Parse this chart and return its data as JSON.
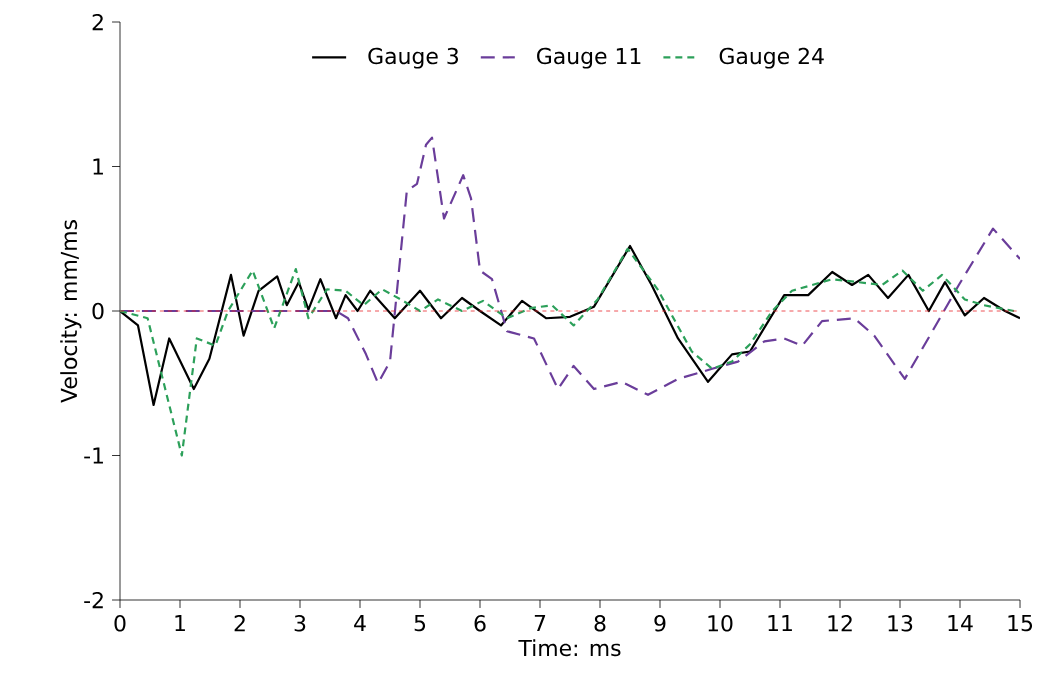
{
  "chart_data": {
    "type": "line",
    "xlabel": "Time: ms",
    "ylabel": "Velocity: mm/ms",
    "xlim": [
      0,
      15
    ],
    "ylim": [
      -2,
      2
    ],
    "xticks": [
      0,
      1,
      2,
      3,
      4,
      5,
      6,
      7,
      8,
      9,
      10,
      11,
      12,
      13,
      14,
      15
    ],
    "yticks": [
      -2,
      -1,
      0,
      1,
      2
    ],
    "grid": false,
    "legend": "top",
    "marker": "none",
    "ref_lines": [
      {
        "axis": "y",
        "value": 0,
        "color": "#e8262b",
        "line_style": "dashed"
      }
    ],
    "series": [
      {
        "name": "Gauge 3",
        "color": "#000000",
        "line_style": "solid",
        "x": [
          0,
          0.3,
          0.56,
          0.82,
          1.23,
          1.49,
          1.85,
          2.06,
          2.31,
          2.62,
          2.78,
          2.98,
          3.14,
          3.34,
          3.6,
          3.76,
          3.96,
          4.17,
          4.58,
          5.0,
          5.35,
          5.7,
          6.0,
          6.35,
          6.7,
          7.1,
          7.5,
          7.9,
          8.5,
          8.86,
          9.3,
          9.8,
          10.2,
          10.5,
          11.07,
          11.47,
          11.87,
          12.2,
          12.47,
          12.8,
          13.14,
          13.48,
          13.75,
          14.08,
          14.4,
          14.75,
          15
        ],
        "values": [
          0,
          -0.1,
          -0.65,
          -0.19,
          -0.54,
          -0.33,
          0.25,
          -0.17,
          0.14,
          0.24,
          0.04,
          0.2,
          0.01,
          0.22,
          -0.05,
          0.11,
          0,
          0.14,
          -0.05,
          0.14,
          -0.05,
          0.09,
          0,
          -0.1,
          0.07,
          -0.05,
          -0.04,
          0.03,
          0.45,
          0.18,
          -0.19,
          -0.49,
          -0.3,
          -0.28,
          0.11,
          0.11,
          0.27,
          0.18,
          0.25,
          0.09,
          0.25,
          0,
          0.2,
          -0.03,
          0.09,
          0,
          -0.05
        ]
      },
      {
        "name": "Gauge 11",
        "color": "#6a3d9a",
        "line_style": "dashed",
        "x": [
          0,
          3.6,
          3.8,
          4.1,
          4.3,
          4.5,
          4.78,
          4.95,
          5.1,
          5.2,
          5.4,
          5.72,
          5.85,
          6.0,
          6.2,
          6.45,
          6.9,
          7.3,
          7.56,
          7.9,
          8.36,
          8.8,
          9.3,
          9.87,
          10.3,
          10.74,
          11.07,
          11.37,
          11.7,
          12.24,
          12.57,
          13.08,
          13.54,
          13.98,
          14.55,
          15
        ],
        "values": [
          0,
          0,
          -0.05,
          -0.3,
          -0.5,
          -0.35,
          0.83,
          0.88,
          1.15,
          1.2,
          0.64,
          0.94,
          0.78,
          0.28,
          0.22,
          -0.14,
          -0.19,
          -0.54,
          -0.38,
          -0.54,
          -0.49,
          -0.58,
          -0.47,
          -0.4,
          -0.35,
          -0.21,
          -0.19,
          -0.24,
          -0.07,
          -0.05,
          -0.17,
          -0.47,
          -0.14,
          0.18,
          0.57,
          0.36
        ]
      },
      {
        "name": "Gauge 24",
        "color": "#2ca05a",
        "line_style": "dotted",
        "x": [
          0,
          0.46,
          1.03,
          1.28,
          1.59,
          1.8,
          2.21,
          2.57,
          2.93,
          3.14,
          3.45,
          3.76,
          4.06,
          4.37,
          4.68,
          5.0,
          5.3,
          5.7,
          6.05,
          6.45,
          6.85,
          7.2,
          7.56,
          7.96,
          8.46,
          8.96,
          9.53,
          9.87,
          10.2,
          10.5,
          10.87,
          11.2,
          11.87,
          12.3,
          12.7,
          13.04,
          13.38,
          13.7,
          14.08,
          14.4,
          14.9
        ],
        "values": [
          0,
          -0.05,
          -1.0,
          -0.19,
          -0.24,
          0,
          0.28,
          -0.12,
          0.29,
          -0.05,
          0.15,
          0.14,
          0.04,
          0.15,
          0.08,
          0,
          0.08,
          0,
          0.07,
          -0.05,
          0.02,
          0.04,
          -0.1,
          0.08,
          0.43,
          0.15,
          -0.28,
          -0.4,
          -0.35,
          -0.23,
          0,
          0.14,
          0.22,
          0.2,
          0.18,
          0.28,
          0.14,
          0.25,
          0.08,
          0.04,
          0
        ]
      }
    ]
  }
}
